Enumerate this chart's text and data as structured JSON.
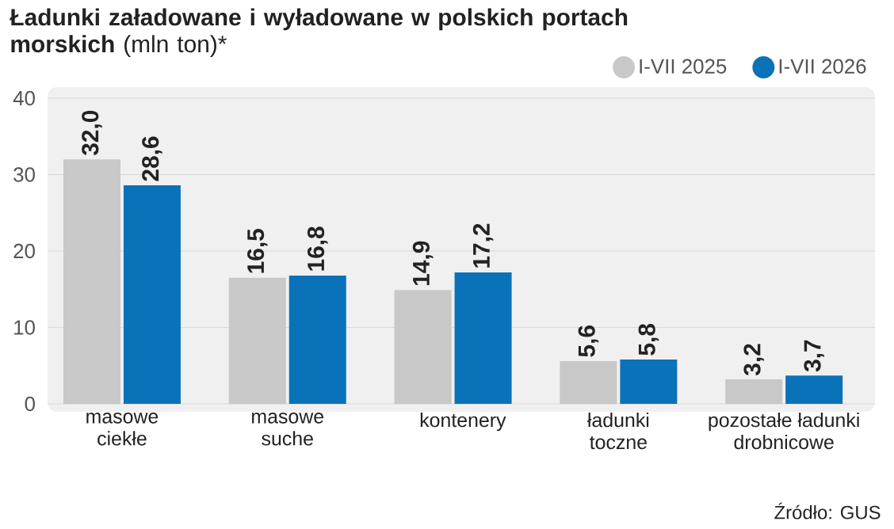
{
  "chart_data": {
    "type": "bar",
    "title": "**Ładunki załadowane i wyładowane w polskich portach morskich** (mln ton)*",
    "categories": [
      "masowe ciekłe",
      "masowe suche",
      "kontenery",
      "ładunki toczne",
      "pozostałe ładunki drobnicowe"
    ],
    "series": [
      {
        "name": "I-VII 2025",
        "color": "#c8c8c8",
        "values": [
          32.0,
          16.5,
          14.9,
          5.6,
          3.2
        ],
        "value_labels": [
          "32,0",
          "16,5",
          "14,9",
          "5,6",
          "3,2"
        ]
      },
      {
        "name": "I-VII 2026",
        "color": "#0a72b8",
        "values": [
          28.6,
          16.8,
          17.2,
          5.8,
          3.7
        ],
        "value_labels": [
          "28,6",
          "16,8",
          "17,2",
          "5,8",
          "3,7"
        ]
      }
    ],
    "ylim": [
      0,
      40
    ],
    "yticks": [
      0,
      10,
      20,
      30,
      40
    ],
    "grid": "y",
    "legend": "top right",
    "annotations": [
      "Źródło: GUS"
    ]
  }
}
